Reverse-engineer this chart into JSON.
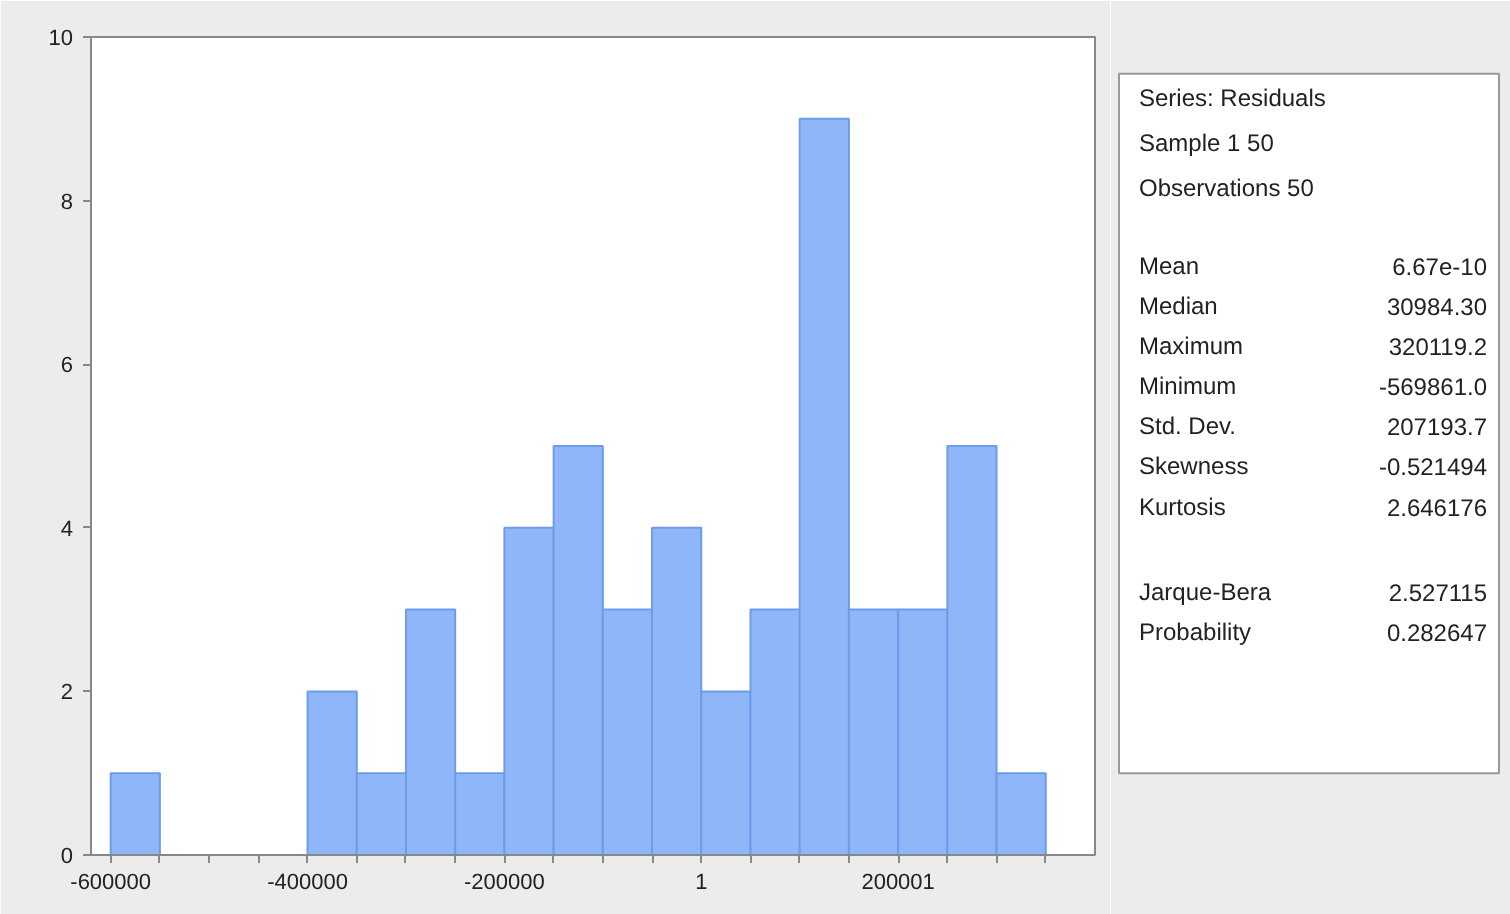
{
  "chart_data": {
    "type": "histogram",
    "bins": [
      -600000,
      -550000,
      -500000,
      -450000,
      -400000,
      -350000,
      -300000,
      -250000,
      -200000,
      -150000,
      -100000,
      -50000,
      0,
      50000,
      100000,
      150000,
      200000,
      250000,
      300000,
      350000
    ],
    "values": [
      1,
      0,
      0,
      0,
      2,
      1,
      3,
      1,
      4,
      5,
      3,
      4,
      2,
      3,
      9,
      3,
      3,
      5,
      1
    ],
    "color": "#8fb6f8",
    "xlim": [
      -620000,
      400000
    ],
    "xticks": [
      -600000,
      {
        "value": -550000,
        "label": null
      },
      {
        "value": -500000,
        "label": null
      },
      {
        "value": -450000,
        "label": null
      },
      -400000,
      {
        "value": -350000,
        "label": null
      },
      {
        "value": -300000,
        "label": null
      },
      {
        "value": -250000,
        "label": null
      },
      -200000,
      {
        "value": -150000,
        "label": null
      },
      {
        "value": -100000,
        "label": null
      },
      {
        "value": -50000,
        "label": null
      },
      1,
      {
        "value": 50000,
        "label": null
      },
      {
        "value": 100000,
        "label": null
      },
      {
        "value": 150000,
        "label": null
      },
      200001,
      {
        "value": 250000,
        "label": null
      },
      {
        "value": 300000,
        "label": null
      },
      {
        "value": 350000,
        "label": null
      }
    ],
    "ylim": [
      0,
      10
    ],
    "yticks": [
      0,
      2,
      4,
      6,
      8,
      10
    ],
    "grid": false,
    "annotations": [
      "Series: Residuals",
      "Sample 1 50",
      "Observations 50",
      "Mean",
      "6.67e-10",
      "Median",
      "30984.30",
      "Maximum",
      "320119.2",
      "Minimum",
      "-569861.0",
      "Std. Dev.",
      "207193.7",
      "Skewness",
      "-0.521494",
      "Kurtosis",
      "2.646176",
      "Jarque-Bera",
      "2.527115",
      "Probability",
      "0.282647"
    ]
  }
}
